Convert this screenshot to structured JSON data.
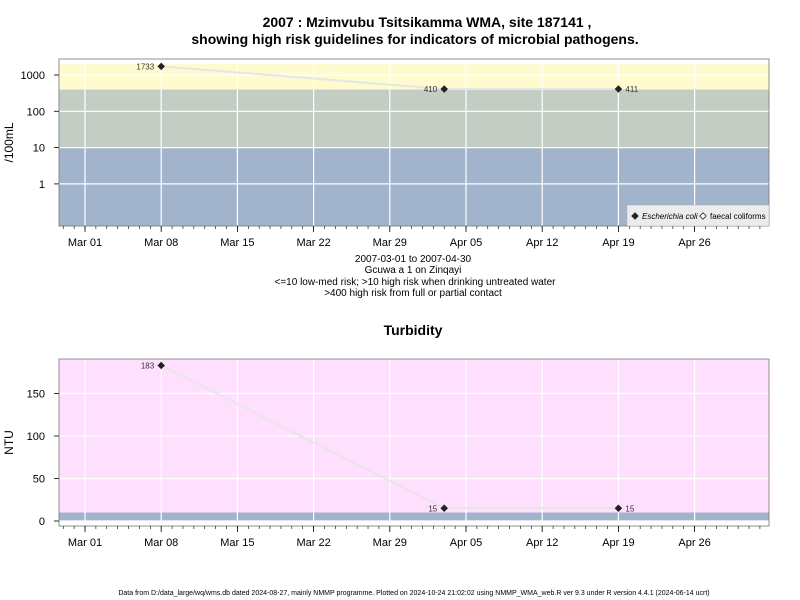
{
  "chart_data": [
    {
      "type": "line",
      "title": "2007 : Mzimvubu Tsitsikamma WMA, site 187141 ,",
      "title_line2": "showing high risk guidelines for indicators of microbial pathogens.",
      "ylabel": "/100mL",
      "yscale": "log",
      "yticks": [
        "1",
        "10",
        "100",
        "1000"
      ],
      "x_ticks": [
        "Mar 01",
        "Mar 08",
        "Mar 15",
        "Mar 22",
        "Mar 29",
        "Apr 05",
        "Apr 12",
        "Apr 19",
        "Apr 26"
      ],
      "bands": [
        {
          "from": 0,
          "to": 10,
          "color": "#a2b4cc"
        },
        {
          "from": 10,
          "to": 400,
          "color": "#c3cdc3"
        },
        {
          "from": 400,
          "to": 2000,
          "color": "#fefbcf"
        }
      ],
      "series": [
        {
          "name": "Escherichia coli",
          "marker": "filled-diamond",
          "points": [
            {
              "x": "2007-03-08",
              "y": 1733,
              "label": "1733"
            },
            {
              "x": "2007-04-03",
              "y": 410,
              "label": "410"
            },
            {
              "x": "2007-04-19",
              "y": 411,
              "label": "411"
            }
          ]
        },
        {
          "name": "faecal coliforms",
          "marker": "open-diamond",
          "points": []
        }
      ],
      "legend": {
        "position": "bottom-right",
        "items": [
          "Escherichia coli",
          "faecal coliforms"
        ]
      },
      "grid": true
    },
    {
      "type": "line",
      "title": "Turbidity",
      "ylabel": "NTU",
      "yticks": [
        "0",
        "50",
        "100",
        "150"
      ],
      "x_ticks": [
        "Mar 01",
        "Mar 08",
        "Mar 15",
        "Mar 22",
        "Mar 29",
        "Apr 05",
        "Apr 12",
        "Apr 19",
        "Apr 26"
      ],
      "bands": [
        {
          "from": 0,
          "to": 10,
          "color": "#a2b4cc"
        },
        {
          "from": 10,
          "to": 200,
          "color": "#fee0fe"
        }
      ],
      "series": [
        {
          "name": "Turbidity",
          "marker": "filled-diamond",
          "points": [
            {
              "x": "2007-03-08",
              "y": 183,
              "label": "183"
            },
            {
              "x": "2007-04-03",
              "y": 15,
              "label": "15"
            },
            {
              "x": "2007-04-19",
              "y": 15,
              "label": "15"
            }
          ]
        }
      ],
      "grid": true
    }
  ],
  "caption": {
    "line1": "2007-03-01 to 2007-04-30",
    "line2": "Gcuwa a 1 on Zinqayi",
    "line3": "<=10 low-med risk; >10 high risk when drinking untreated water",
    "line4": ">400 high risk from full or partial contact"
  },
  "footer": "Data from D:/data_large/wq/wms.db dated 2024-08-27, mainly NMMP programme. Plotted on 2024-10-24 21:02:02 using NMMP_WMA_web.R ver 9.3 under R version 4.4.1 (2024-06-14 ucrt)"
}
